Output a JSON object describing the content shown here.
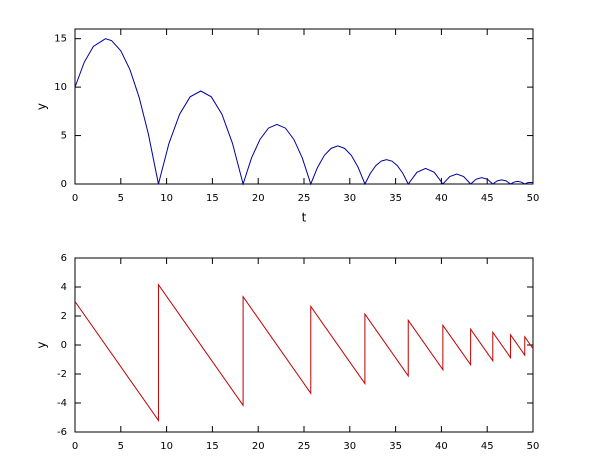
{
  "chart_data": [
    {
      "type": "line",
      "xlabel": "t",
      "ylabel": "y",
      "color": "#00009e",
      "x": [
        0,
        1,
        2,
        3.33,
        4,
        5,
        6,
        7,
        8,
        9.11,
        10.26,
        11.42,
        12.57,
        13.73,
        14.88,
        16.04,
        17.19,
        18.35,
        19.27,
        20.2,
        21.12,
        22.04,
        22.97,
        23.89,
        24.81,
        25.74,
        26.48,
        27.22,
        27.96,
        28.69,
        29.43,
        30.17,
        30.91,
        31.65,
        32.24,
        32.83,
        33.42,
        34.01,
        34.61,
        35.2,
        35.79,
        36.38,
        37.33,
        38.27,
        39.22,
        40.16,
        40.92,
        41.68,
        42.43,
        43.19,
        43.8,
        44.4,
        45.01,
        45.61,
        46.1,
        46.58,
        47.06,
        47.55,
        47.94,
        48.32,
        48.71,
        49.1,
        49.41,
        49.72,
        50
      ],
      "values": [
        10,
        12.55,
        14.2,
        15,
        14.8,
        13.75,
        11.8,
        8.95,
        5.2,
        0,
        4.2,
        7.2,
        9.0,
        9.6,
        9.0,
        7.2,
        4.2,
        0,
        2.69,
        4.61,
        5.77,
        6.15,
        5.77,
        4.61,
        2.69,
        0,
        1.72,
        2.95,
        3.68,
        3.93,
        3.68,
        2.95,
        1.72,
        0,
        1.1,
        1.89,
        2.36,
        2.52,
        2.36,
        1.89,
        1.1,
        0,
        1.21,
        1.61,
        1.21,
        0,
        0.77,
        1.03,
        0.77,
        0,
        0.5,
        0.66,
        0.5,
        0,
        0.32,
        0.42,
        0.32,
        0,
        0.2,
        0.27,
        0.2,
        0,
        0.13,
        0.17,
        0.14
      ],
      "xlim": [
        0,
        50
      ],
      "xticks": [
        0,
        5,
        10,
        15,
        20,
        25,
        30,
        35,
        40,
        45,
        50
      ],
      "ylim": [
        0,
        16
      ],
      "yticks": [
        0,
        5,
        10,
        15
      ]
    },
    {
      "type": "line",
      "ylabel": "y",
      "color": "#c00000",
      "x": [
        0,
        9.11,
        9.11,
        18.35,
        18.35,
        25.74,
        25.74,
        31.65,
        31.65,
        36.38,
        36.38,
        40.16,
        40.16,
        43.19,
        43.19,
        45.61,
        45.61,
        47.55,
        47.55,
        49.1,
        49.1,
        50
      ],
      "values": [
        3,
        -5.2,
        4.16,
        -4.16,
        3.33,
        -3.33,
        2.66,
        -2.66,
        2.13,
        -2.13,
        1.7,
        -1.7,
        1.36,
        -1.36,
        1.09,
        -1.09,
        0.87,
        -0.87,
        0.7,
        -0.7,
        0.56,
        -0.25
      ],
      "xlim": [
        0,
        50
      ],
      "xticks": [
        0,
        5,
        10,
        15,
        20,
        25,
        30,
        35,
        40,
        45,
        50
      ],
      "ylim": [
        -6,
        6
      ],
      "yticks": [
        -6,
        -4,
        -2,
        0,
        2,
        4,
        6
      ]
    }
  ]
}
